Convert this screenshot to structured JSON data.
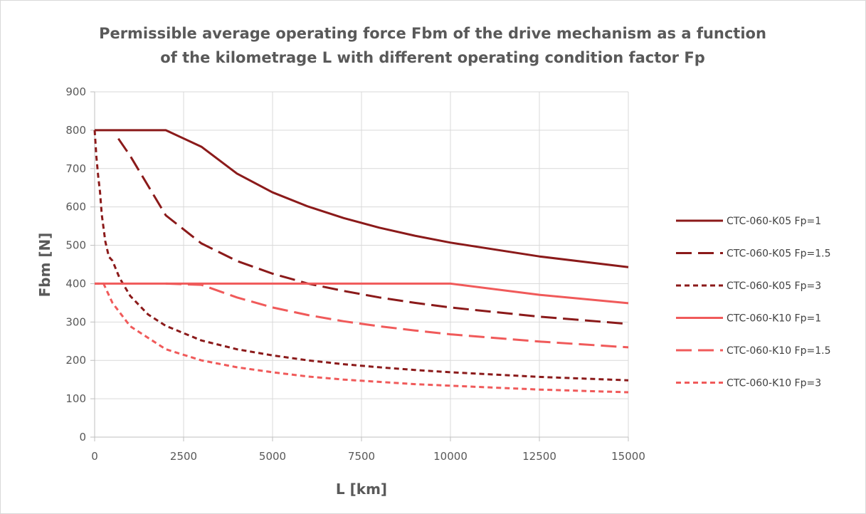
{
  "chart_data": {
    "type": "line",
    "title_lines": [
      "Permissible average operating force Fbm of the drive mechanism as a function",
      "of the kilometrage L with different operating condition factor Fp"
    ],
    "xlabel": "L [km]",
    "ylabel": "Fbm [N]",
    "xlim": [
      0,
      15000
    ],
    "ylim": [
      0,
      900
    ],
    "x_ticks": [
      0,
      2500,
      5000,
      7500,
      10000,
      12500,
      15000
    ],
    "y_ticks": [
      0,
      100,
      200,
      300,
      400,
      500,
      600,
      700,
      800,
      900
    ],
    "grid": true,
    "legend_position": "right",
    "series": [
      {
        "name": "CTC-060-K05 Fp=1",
        "color": "#8B1A1A",
        "dash": "solid",
        "points": [
          [
            0,
            800
          ],
          [
            2000,
            800
          ],
          [
            3000,
            757
          ],
          [
            4000,
            687
          ],
          [
            5000,
            638
          ],
          [
            6000,
            601
          ],
          [
            7000,
            571
          ],
          [
            8000,
            546
          ],
          [
            9000,
            525
          ],
          [
            10000,
            507
          ],
          [
            12500,
            471
          ],
          [
            15000,
            443
          ]
        ]
      },
      {
        "name": "CTC-060-K05 Fp=1.5",
        "color": "#8B1A1A",
        "dash": "long",
        "points": [
          [
            667,
            778
          ],
          [
            1000,
            733
          ],
          [
            2000,
            578
          ],
          [
            3000,
            505
          ],
          [
            4000,
            459
          ],
          [
            5000,
            426
          ],
          [
            6000,
            400
          ],
          [
            7000,
            381
          ],
          [
            8000,
            364
          ],
          [
            9000,
            350
          ],
          [
            10000,
            338
          ],
          [
            12500,
            314
          ],
          [
            15000,
            295
          ]
        ]
      },
      {
        "name": "CTC-060-K05 Fp=3",
        "color": "#8B1A1A",
        "dash": "short",
        "points": [
          [
            0,
            800
          ],
          [
            50,
            730
          ],
          [
            100,
            680
          ],
          [
            150,
            640
          ],
          [
            200,
            580
          ],
          [
            300,
            510
          ],
          [
            400,
            470
          ],
          [
            500,
            460
          ],
          [
            700,
            415
          ],
          [
            1000,
            368
          ],
          [
            1500,
            320
          ],
          [
            2000,
            290
          ],
          [
            3000,
            252
          ],
          [
            4000,
            229
          ],
          [
            5000,
            213
          ],
          [
            6000,
            200
          ],
          [
            7000,
            190
          ],
          [
            8000,
            182
          ],
          [
            9000,
            175
          ],
          [
            10000,
            169
          ],
          [
            12500,
            157
          ],
          [
            15000,
            148
          ]
        ]
      },
      {
        "name": "CTC-060-K10 Fp=1",
        "color": "#F05A5A",
        "dash": "solid",
        "points": [
          [
            0,
            400
          ],
          [
            10000,
            400
          ],
          [
            12500,
            371
          ],
          [
            15000,
            349
          ]
        ]
      },
      {
        "name": "CTC-060-K10 Fp=1.5",
        "color": "#F05A5A",
        "dash": "long",
        "points": [
          [
            2000,
            400
          ],
          [
            3000,
            397
          ],
          [
            4000,
            364
          ],
          [
            5000,
            338
          ],
          [
            6000,
            318
          ],
          [
            7000,
            302
          ],
          [
            8000,
            289
          ],
          [
            9000,
            278
          ],
          [
            10000,
            268
          ],
          [
            12500,
            249
          ],
          [
            15000,
            234
          ]
        ]
      },
      {
        "name": "CTC-060-K10 Fp=3",
        "color": "#F05A5A",
        "dash": "short",
        "points": [
          [
            0,
            400
          ],
          [
            250,
            400
          ],
          [
            500,
            350
          ],
          [
            1000,
            289
          ],
          [
            2000,
            229
          ],
          [
            3000,
            200
          ],
          [
            4000,
            182
          ],
          [
            5000,
            169
          ],
          [
            6000,
            158
          ],
          [
            7000,
            150
          ],
          [
            8000,
            144
          ],
          [
            9000,
            138
          ],
          [
            10000,
            134
          ],
          [
            12500,
            124
          ],
          [
            15000,
            117
          ]
        ]
      }
    ]
  }
}
